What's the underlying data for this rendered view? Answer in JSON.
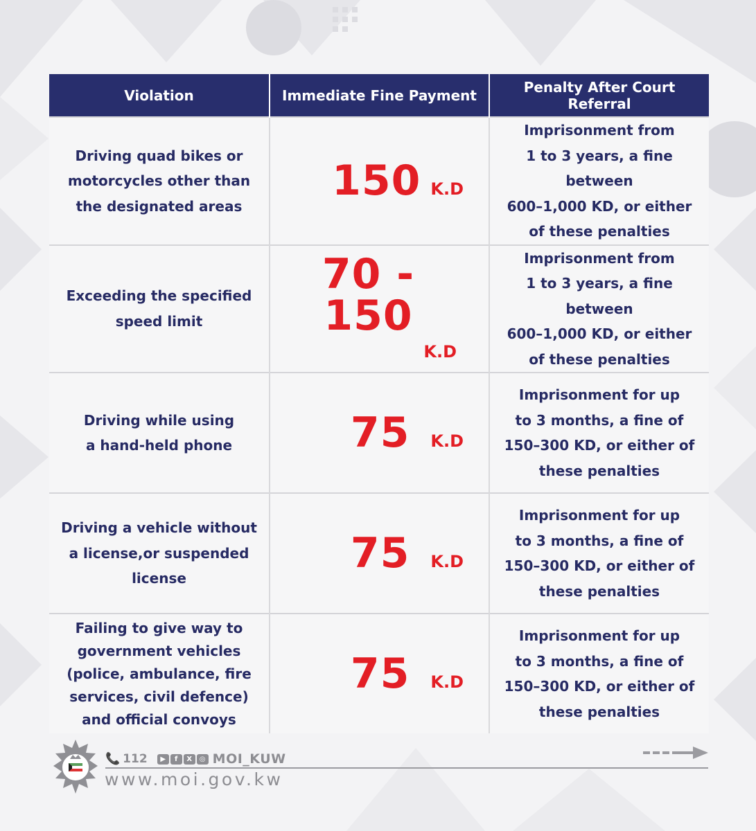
{
  "table": {
    "headers": {
      "violation": "Violation",
      "immediate": "Immediate Fine Payment",
      "court": "Penalty After Court Referral"
    },
    "rows": [
      {
        "violation": [
          "Driving quad bikes or",
          "motorcycles other than",
          "the designated areas"
        ],
        "fine_amount": "150",
        "fine_unit": "K.D",
        "penalty": [
          "Imprisonment from",
          "1 to 3 years, a fine between",
          "600–1,000 KD, or either",
          "of these penalties"
        ]
      },
      {
        "violation": [
          "Exceeding the specified",
          "speed limit"
        ],
        "fine_amount": "70 - 150",
        "fine_unit": "K.D",
        "penalty": [
          "Imprisonment from",
          "1 to 3 years, a fine between",
          "600–1,000 KD, or either",
          "of these penalties"
        ]
      },
      {
        "violation": [
          "Driving while using",
          "a hand-held phone"
        ],
        "fine_amount": "75",
        "fine_unit": "K.D",
        "penalty": [
          "Imprisonment for up",
          "to 3 months, a fine of",
          "150–300 KD, or either of",
          "these penalties"
        ]
      },
      {
        "violation": [
          "Driving a vehicle without",
          "a license,or suspended",
          "license"
        ],
        "fine_amount": "75",
        "fine_unit": "K.D",
        "penalty": [
          "Imprisonment for up",
          "to 3 months, a fine of",
          "150–300 KD, or either of",
          "these penalties"
        ]
      },
      {
        "violation": [
          "Failing to give way to",
          "government vehicles",
          "(police, ambulance, fire",
          "services, civil defence)",
          "and official convoys"
        ],
        "fine_amount": "75",
        "fine_unit": "K.D",
        "penalty": [
          "Imprisonment for up",
          "to 3 months, a fine of",
          "150–300 KD, or either of",
          "these penalties"
        ]
      }
    ]
  },
  "footer": {
    "phone": "112",
    "social_icons": [
      "youtube-icon",
      "facebook-icon",
      "x-icon",
      "instagram-icon"
    ],
    "social_glyphs": [
      "▶",
      "f",
      "X",
      "◎"
    ],
    "handle": "MOI_KUW",
    "website": "www.moi.gov.kw",
    "logo": "kuwait-police-badge-icon"
  },
  "colors": {
    "header_bg": "#282e6d",
    "text_navy": "#262a63",
    "fine_red": "#e31e25",
    "footer_gray": "#8d8d92"
  }
}
